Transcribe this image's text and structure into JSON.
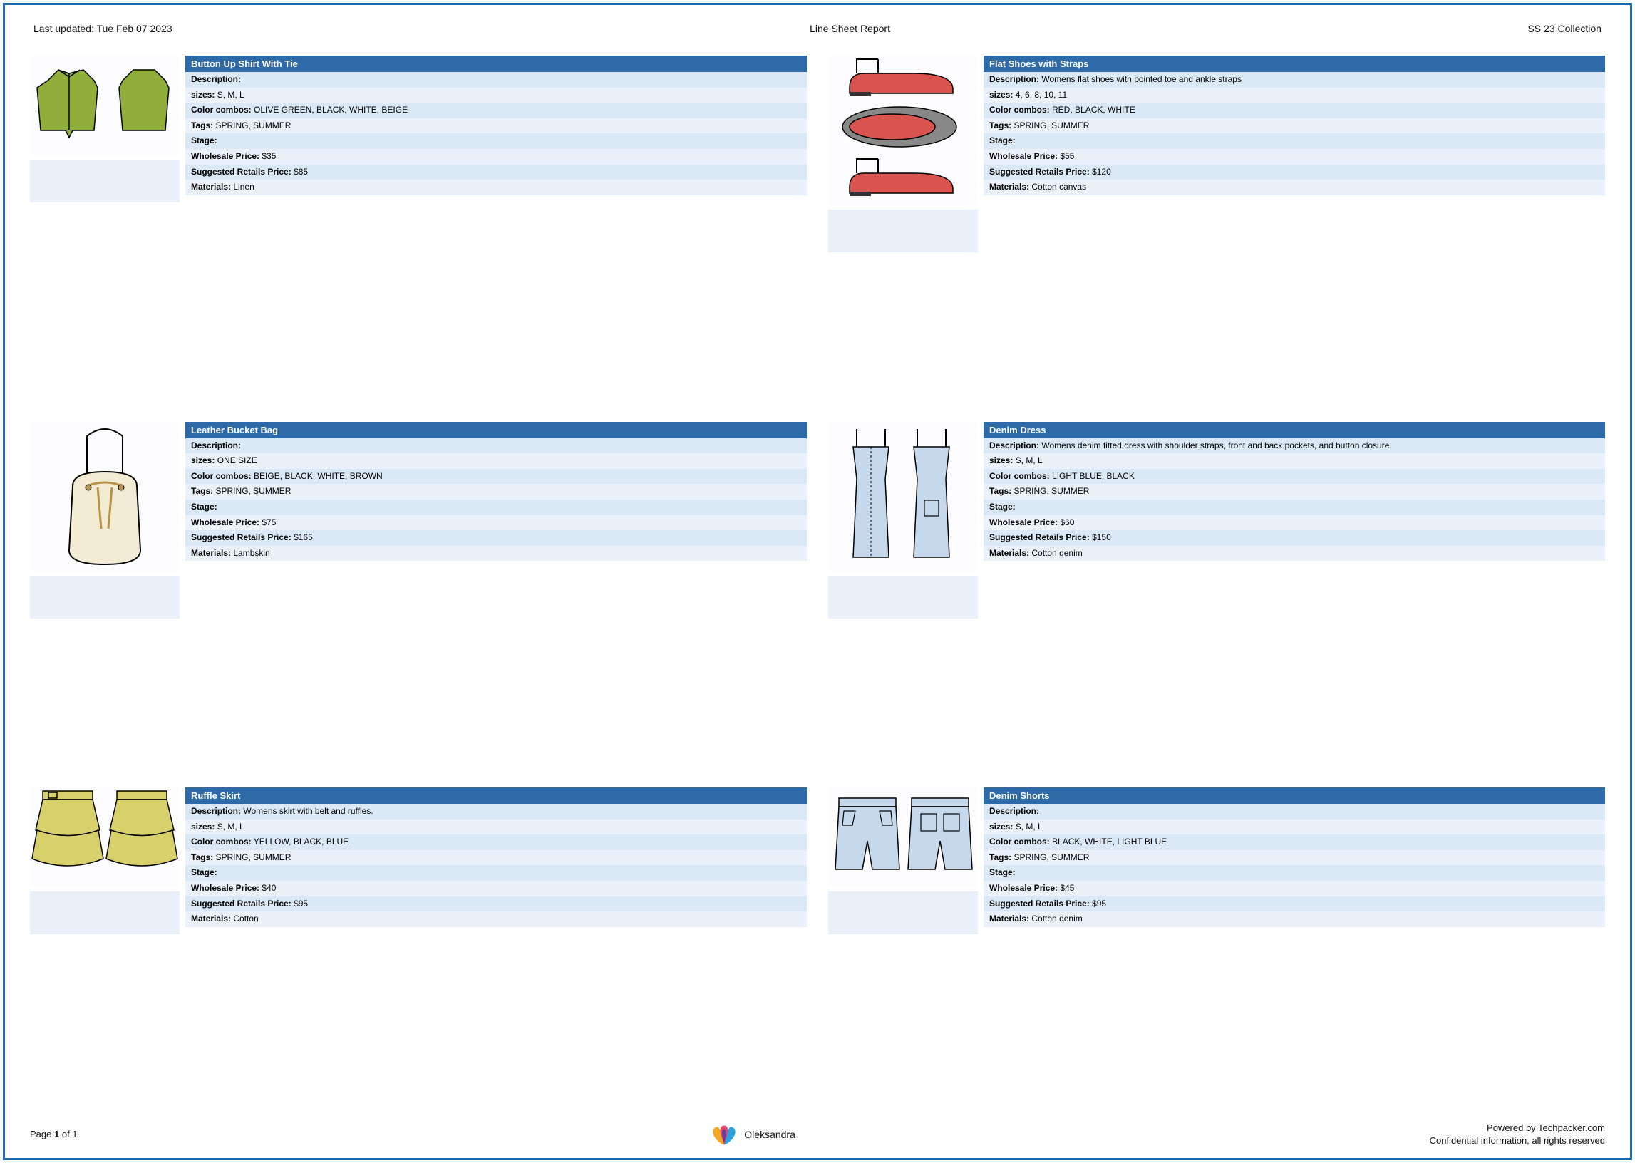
{
  "header": {
    "last_updated": "Last updated: Tue Feb 07 2023",
    "title": "Line Sheet Report",
    "collection": "SS 23 Collection"
  },
  "labels": {
    "description": "Description:",
    "sizes": "sizes:",
    "color_combos": "Color combos:",
    "tags": "Tags:",
    "stage": "Stage:",
    "wholesale": "Wholesale Price:",
    "retail": "Suggested Retails Price:",
    "materials": "Materials:"
  },
  "colors": {
    "border": "#1e6bb8",
    "title_bar": "#2e6aa8",
    "row_light": "#eaf1fa",
    "row_dark": "#dbe9f6"
  },
  "products": [
    {
      "title": "Button Up Shirt With Tie",
      "description": "",
      "sizes": "S, M, L",
      "color_combos": "OLIVE GREEN, BLACK, WHITE, BEIGE",
      "tags": "SPRING, SUMMER",
      "stage": "",
      "wholesale": "$35",
      "retail": "$85",
      "materials": "Linen",
      "sketch": "shirt",
      "sketch_color": "#8fae3a"
    },
    {
      "title": "Flat Shoes with Straps",
      "description": "Womens flat shoes with pointed toe and ankle straps",
      "sizes": "4, 6, 8, 10, 11",
      "color_combos": "RED, BLACK, WHITE",
      "tags": "SPRING, SUMMER",
      "stage": "",
      "wholesale": "$55",
      "retail": "$120",
      "materials": "Cotton canvas",
      "sketch": "shoes",
      "sketch_color": "#d9544f"
    },
    {
      "title": "Leather Bucket Bag",
      "description": "",
      "sizes": "ONE SIZE",
      "color_combos": "BEIGE, BLACK, WHITE, BROWN",
      "tags": "SPRING, SUMMER",
      "stage": "",
      "wholesale": "$75",
      "retail": "$165",
      "materials": "Lambskin",
      "sketch": "bag",
      "sketch_color": "#f4ebd4"
    },
    {
      "title": "Denim Dress",
      "description": "Womens denim fitted dress with shoulder straps, front and back pockets, and button closure.",
      "sizes": "S, M, L",
      "color_combos": "LIGHT BLUE, BLACK",
      "tags": "SPRING, SUMMER",
      "stage": "",
      "wholesale": "$60",
      "retail": "$150",
      "materials": "Cotton denim",
      "sketch": "dress",
      "sketch_color": "#c6d8ec"
    },
    {
      "title": "Ruffle Skirt",
      "description": "Womens skirt with belt and ruffles.",
      "sizes": "S, M, L",
      "color_combos": "YELLOW, BLACK, BLUE",
      "tags": "SPRING, SUMMER",
      "stage": "",
      "wholesale": "$40",
      "retail": "$95",
      "materials": "Cotton",
      "sketch": "skirt",
      "sketch_color": "#d8d06a"
    },
    {
      "title": "Denim Shorts",
      "description": "",
      "sizes": "S, M, L",
      "color_combos": "BLACK, WHITE, LIGHT BLUE",
      "tags": "SPRING, SUMMER",
      "stage": "",
      "wholesale": "$45",
      "retail": "$95",
      "materials": "Cotton denim",
      "sketch": "shorts",
      "sketch_color": "#c6d8ec"
    }
  ],
  "footer": {
    "page_label": "Page",
    "page_current": "1",
    "page_of": "of",
    "page_total": "1",
    "user": "Oleksandra",
    "powered": "Powered by Techpacker.com",
    "confidential": "Confidential information, all rights reserved"
  }
}
